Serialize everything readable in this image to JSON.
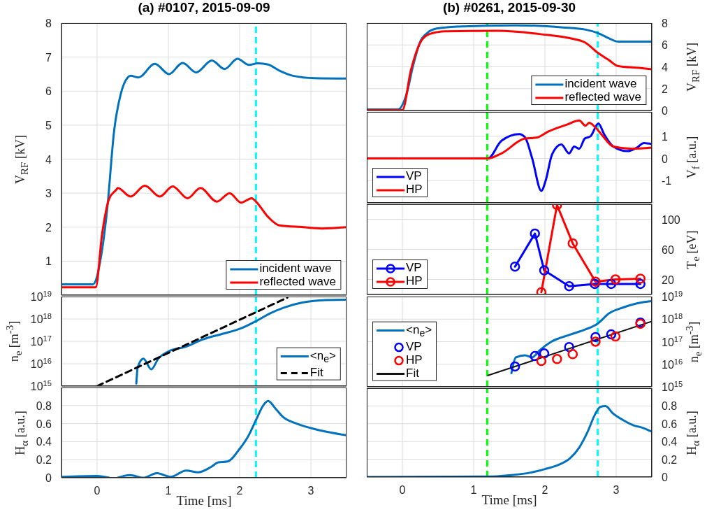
{
  "chart_data": [
    {
      "type": "line",
      "title": "(a) #0107, 2015-09-09",
      "ylabel": "V$_{RF}$ [kV]",
      "xlim": [
        -0.5,
        3.5
      ],
      "xticks": [
        0,
        1,
        2,
        3
      ],
      "ylim": [
        0,
        8
      ],
      "yticks": [
        1,
        2,
        3,
        4,
        5,
        6,
        7,
        8
      ],
      "tick_labels": "y",
      "grid": true,
      "legend": "bottom right",
      "ref_lines": [
        {
          "axis": "x",
          "value": 2.23,
          "color": "#00ffff",
          "line_style": "dashed"
        }
      ],
      "series": [
        {
          "name": "incident wave",
          "color": "#0072bd",
          "x": [
            -0.5,
            -0.06,
            0.06,
            0.14,
            0.24,
            0.33,
            0.43,
            0.47,
            0.58,
            0.81,
            1.01,
            1.2,
            1.39,
            1.61,
            1.79,
            1.97,
            2.13,
            2.26,
            2.4,
            2.56,
            2.75,
            3.05,
            3.5
          ],
          "values": [
            0.32,
            0.32,
            1.2,
            2.5,
            4.85,
            5.9,
            6.4,
            6.45,
            6.4,
            6.8,
            6.5,
            6.83,
            6.55,
            6.9,
            6.65,
            6.95,
            6.77,
            6.82,
            6.78,
            6.6,
            6.45,
            6.38,
            6.37
          ]
        },
        {
          "name": "reflected wave",
          "color": "#ff0000",
          "x": [
            -0.5,
            -0.02,
            0.07,
            0.17,
            0.27,
            0.29,
            0.47,
            0.67,
            0.88,
            1.06,
            1.27,
            1.45,
            1.68,
            1.86,
            2.02,
            2.17,
            2.23,
            2.4,
            2.56,
            2.89,
            3.15,
            3.5
          ],
          "values": [
            0.23,
            0.23,
            1.8,
            2.84,
            3.1,
            3.15,
            2.9,
            3.22,
            2.9,
            3.2,
            2.85,
            3.15,
            2.75,
            3.0,
            2.72,
            2.85,
            2.75,
            2.3,
            2.05,
            2.0,
            1.96,
            2.0
          ]
        }
      ]
    },
    {
      "type": "line",
      "ylabel": "n$_{e}$ [m$^{-3}$]",
      "xlim": [
        -0.5,
        3.5
      ],
      "xticks": [
        0,
        1,
        2,
        3
      ],
      "log": "y",
      "ylim": [
        1000000000000000.0,
        1e+19
      ],
      "yticks": [
        {
          "value": 1000000000000000.0,
          "label": "10$^{15}$"
        },
        {
          "value": 1e+16,
          "label": "10$^{16}$"
        },
        {
          "value": 1e+17,
          "label": "10$^{17}$"
        },
        {
          "value": 1e+18,
          "label": "10$^{18}$"
        },
        {
          "value": 1e+19,
          "label": "10$^{19}$"
        }
      ],
      "tick_labels": "y",
      "grid": true,
      "legend": "bottom right",
      "ref_lines": [
        {
          "axis": "x",
          "value": 2.23,
          "color": "#00ffff",
          "line_style": "dashed"
        }
      ],
      "series": [
        {
          "name": "<n$_{e}$>",
          "color": "#0072bd",
          "x": [
            0.55,
            0.57,
            0.65,
            0.76,
            0.86,
            1.0,
            1.25,
            1.48,
            1.77,
            2.0,
            2.23,
            2.43,
            2.62,
            2.88,
            3.21,
            3.5
          ],
          "values": [
            1300000000000000.0,
            7000000000000000.0,
            1.7e+16,
            5600000000000000.0,
            1.7e+16,
            3.5e+16,
            5.8e+16,
            1.2e+17,
            2.2e+17,
            3.6e+17,
            8e+17,
            1.8e+18,
            3.2e+18,
            5.4e+18,
            7e+18,
            7.2e+18
          ]
        },
        {
          "name": "Fit",
          "color": "#000000",
          "line_style": "dashed",
          "x": [
            0,
            2.67
          ],
          "values": [
            1000000000000000.0,
            9e+18
          ]
        }
      ]
    },
    {
      "type": "line",
      "ylabel": "H$_{α}$ [a.u.]",
      "xlabel": "Time [ms]",
      "xlim": [
        -0.5,
        3.5
      ],
      "xticks": [
        0,
        1,
        2,
        3
      ],
      "ylim": [
        0,
        1
      ],
      "yticks": [
        0,
        0.2,
        0.4,
        0.6,
        0.8
      ],
      "grid": true,
      "ref_lines": [
        {
          "axis": "x",
          "value": 2.23,
          "color": "#00ffff",
          "line_style": "dashed"
        }
      ],
      "series": [
        {
          "color": "#0072bd",
          "x": [
            -0.5,
            0,
            0.17,
            0.23,
            0.29,
            0.46,
            0.65,
            0.84,
            1.03,
            1.25,
            1.42,
            1.6,
            1.7,
            1.83,
            2.0,
            2.12,
            2.23,
            2.33,
            2.4,
            2.5,
            2.6,
            2.8,
            3.0,
            3.5
          ],
          "values": [
            0.01,
            0.02,
            0,
            null,
            0,
            0.03,
            0,
            0.05,
            0.01,
            0.08,
            0.06,
            0.12,
            0.17,
            0.18,
            0.32,
            0.46,
            0.64,
            0.8,
            0.85,
            0.77,
            0.68,
            0.6,
            0.55,
            0.47
          ]
        }
      ]
    },
    {
      "type": "line",
      "title": "(b) #0261, 2015-09-30",
      "ylabel": "V$_{RF}$ [kV]",
      "xlim": [
        -0.5,
        3.5
      ],
      "xticks": [
        0,
        1,
        2,
        3
      ],
      "ylim": [
        0,
        8
      ],
      "yticks": [
        0,
        2,
        4,
        6,
        8
      ],
      "tick_labels": "y",
      "grid": true,
      "legend": "bottom right",
      "ref_lines": [
        {
          "axis": "x",
          "value": 1.19,
          "color": "#00ff00",
          "line_style": "dashed"
        },
        {
          "axis": "x",
          "value": 2.74,
          "color": "#00ffff",
          "line_style": "dashed"
        }
      ],
      "series": [
        {
          "name": "incident wave",
          "color": "#0072bd",
          "x": [
            -0.5,
            -0.06,
            0.06,
            0.15,
            0.25,
            0.35,
            0.48,
            0.77,
            1.59,
            2.25,
            2.57,
            2.74,
            2.9,
            3.03,
            3.5
          ],
          "values": [
            0.1,
            0.1,
            1.55,
            4.1,
            6.3,
            7.1,
            7.5,
            7.68,
            7.8,
            7.6,
            7.4,
            7.1,
            6.6,
            6.3,
            6.3
          ]
        },
        {
          "name": "reflected wave",
          "color": "#ff0000",
          "x": [
            -0.5,
            0,
            0.12,
            0.25,
            0.38,
            0.61,
            1.33,
            1.92,
            2.54,
            2.74,
            2.9,
            3.03,
            3.32,
            3.5
          ],
          "values": [
            0.05,
            0.05,
            3.7,
            6.2,
            7.0,
            7.25,
            7.3,
            7.0,
            6.3,
            5.3,
            4.6,
            4.06,
            3.9,
            3.78
          ]
        }
      ]
    },
    {
      "type": "line",
      "ylabel": "V$_{f}$ [a.u.]",
      "xlim": [
        -0.5,
        3.5
      ],
      "xticks": [
        0,
        1,
        2,
        3
      ],
      "ylim": [
        -2,
        2.1
      ],
      "yticks": [
        -1,
        0,
        1
      ],
      "tick_labels": "y",
      "grid": true,
      "legend": "bottom left",
      "ref_lines": [
        {
          "axis": "x",
          "value": 1.19,
          "color": "#00ff00",
          "line_style": "dashed"
        },
        {
          "axis": "x",
          "value": 2.74,
          "color": "#00ffff",
          "line_style": "dashed"
        }
      ],
      "series": [
        {
          "name": "VP",
          "color": "#0000ff",
          "x": [
            -0.5,
            1.2,
            1.39,
            1.64,
            1.72,
            1.82,
            1.95,
            2.01,
            2.1,
            2.23,
            2.34,
            2.41,
            2.48,
            2.56,
            2.64,
            2.75,
            2.83,
            2.96,
            3.16,
            3.29,
            3.39,
            3.5
          ],
          "values": [
            0,
            0,
            0.8,
            1.1,
            0.96,
            0.02,
            -1.46,
            -1.0,
            0.18,
            0.63,
            0.23,
            0.54,
            0.44,
            0.9,
            1.0,
            1.58,
            1.1,
            0.54,
            0.33,
            0.49,
            0.7,
            0.65
          ]
        },
        {
          "name": "HP",
          "color": "#ff0000",
          "x": [
            -0.5,
            1.2,
            1.39,
            1.72,
            1.88,
            2.05,
            2.31,
            2.48,
            2.57,
            2.62,
            2.7,
            2.8,
            2.96,
            3.22,
            3.5
          ],
          "values": [
            0,
            0,
            0.23,
            0.9,
            0.94,
            1.22,
            1.53,
            1.71,
            1.48,
            1.61,
            1.43,
            1.06,
            0.54,
            0.44,
            0.49
          ]
        }
      ]
    },
    {
      "type": "line",
      "ylabel": "T$_{e}$ [eV]",
      "xlim": [
        -0.5,
        3.5
      ],
      "xticks": [
        0,
        1,
        2,
        3
      ],
      "ylim": [
        0,
        120
      ],
      "yticks": [
        20,
        60,
        100
      ],
      "tick_labels": "y",
      "grid": true,
      "legend": "bottom left",
      "marker": "circle",
      "ref_lines": [
        {
          "axis": "x",
          "value": 1.19,
          "color": "#00ff00",
          "line_style": "dashed"
        },
        {
          "axis": "x",
          "value": 2.74,
          "color": "#00ffff",
          "line_style": "dashed"
        }
      ],
      "series": [
        {
          "name": "VP",
          "color": "#0000ff",
          "x": [
            1.58,
            1.86,
            1.99,
            2.34,
            2.7,
            2.93,
            3.34
          ],
          "values": [
            37,
            81,
            32,
            11,
            14,
            14,
            14
          ]
        },
        {
          "name": "HP",
          "color": "#ff0000",
          "x": [
            1.95,
            2.17,
            2.39,
            2.71,
            2.99,
            3.34
          ],
          "values": [
            3,
            119,
            68,
            17,
            20,
            21
          ]
        }
      ]
    },
    {
      "type": "line",
      "ylabel": "n$_{e}$ [m$^{-3}$]",
      "xlim": [
        -0.5,
        3.5
      ],
      "xticks": [
        0,
        1,
        2,
        3
      ],
      "log": "y",
      "ylim": [
        1000000000000000.0,
        1e+19
      ],
      "yticks": [
        {
          "value": 1000000000000000.0,
          "label": "10$^{15}$"
        },
        {
          "value": 1e+16,
          "label": "10$^{16}$"
        },
        {
          "value": 1e+17,
          "label": "10$^{17}$"
        },
        {
          "value": 1e+18,
          "label": "10$^{18}$"
        },
        {
          "value": 1e+19,
          "label": "10$^{19}$"
        }
      ],
      "tick_labels": "y",
      "grid": true,
      "legend": "bottom left",
      "ref_lines": [
        {
          "axis": "x",
          "value": 1.19,
          "color": "#00ff00",
          "line_style": "dashed"
        },
        {
          "axis": "x",
          "value": 2.74,
          "color": "#00ffff",
          "line_style": "dashed"
        }
      ],
      "series": [
        {
          "name": "<n$_{e}$>",
          "color": "#0072bd",
          "x": [
            1.53,
            1.59,
            1.72,
            1.82,
            1.92,
            2.09,
            2.34,
            2.57,
            2.74,
            2.9,
            3.1,
            3.29,
            3.5
          ],
          "values": [
            4000000000000000.0,
            2e+16,
            2.5e+16,
            2e+16,
            4e+16,
            1e+17,
            2e+17,
            3.5e+17,
            6.3e+17,
            1.8e+18,
            3.3e+18,
            5e+18,
            6.3e+18
          ]
        },
        {
          "name": "VP",
          "type": "scatter",
          "marker": "circle",
          "color": "#0000ff",
          "x": [
            1.58,
            1.86,
            1.99,
            2.34,
            2.71,
            2.93,
            3.34
          ],
          "values": [
            8000000000000000.0,
            2.3e+16,
            3e+16,
            5.8e+16,
            1.6e+17,
            2.1e+17,
            7e+17
          ]
        },
        {
          "name": "HP",
          "type": "scatter",
          "marker": "circle",
          "color": "#ff0000",
          "x": [
            1.95,
            2.17,
            2.39,
            2.71,
            2.99,
            3.34
          ],
          "values": [
            1.4e+16,
            1.7e+16,
            2.8e+16,
            1e+17,
            1.7e+17,
            6.2e+17
          ]
        },
        {
          "name": "Fit",
          "color": "#141414",
          "x": [
            1.2,
            3.5
          ],
          "values": [
            3200000000000000.0,
            8e+17
          ]
        }
      ]
    },
    {
      "type": "line",
      "ylabel": "H$_{α}$ [a.u.]",
      "xlabel": "Time [ms]",
      "xlim": [
        -0.5,
        3.5
      ],
      "xticks": [
        0,
        1,
        2,
        3
      ],
      "ylim": [
        0,
        1
      ],
      "yticks": [
        0,
        0.2,
        0.4,
        0.6,
        0.8
      ],
      "grid": true,
      "ref_lines": [
        {
          "axis": "x",
          "value": 1.19,
          "color": "#00ff00",
          "line_style": "dashed"
        },
        {
          "axis": "x",
          "value": 2.74,
          "color": "#00ffff",
          "line_style": "dashed"
        }
      ],
      "series": [
        {
          "color": "#0072bd",
          "x": [
            -0.5,
            1.2,
            1.5,
            1.8,
            2.0,
            2.2,
            2.35,
            2.48,
            2.6,
            2.7,
            2.78,
            2.85,
            2.95,
            3.1,
            3.25,
            3.35,
            3.5
          ],
          "values": [
            0,
            0.005,
            0.02,
            0.05,
            0.09,
            0.14,
            0.21,
            0.33,
            0.51,
            0.7,
            0.79,
            0.8,
            0.72,
            0.64,
            0.58,
            0.56,
            0.51
          ]
        }
      ]
    }
  ]
}
